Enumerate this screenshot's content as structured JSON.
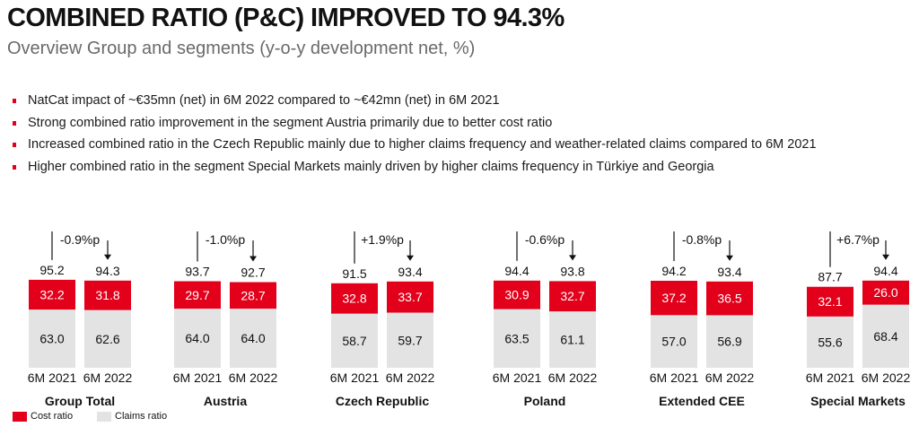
{
  "title": "COMBINED RATIO (P&C) IMPROVED TO 94.3%",
  "subtitle": "Overview Group and segments (y-o-y development net, %)",
  "bullets": [
    "NatCat impact of ~€35mn (net) in 6M 2022 compared to ~€42mn (net) in 6M 2021",
    "Strong combined ratio improvement in the segment Austria primarily due to better cost ratio",
    "Increased combined ratio in the Czech Republic mainly due to higher claims frequency and weather-related claims compared to 6M 2021",
    "Higher combined ratio in the segment Special Markets mainly driven by higher claims frequency in Türkiye and Georgia"
  ],
  "colors": {
    "cost": "#e2001a",
    "claims": "#e3e3e3",
    "accent": "#e2001a"
  },
  "legend": {
    "cost_label": "Cost ratio",
    "claims_label": "Claims ratio"
  },
  "chart_data": {
    "type": "bar",
    "stacked": true,
    "periods": [
      "6M 2021",
      "6M 2022"
    ],
    "series_names": [
      "Cost ratio",
      "Claims ratio"
    ],
    "segments": [
      {
        "name": "Group Total",
        "change": "-0.9%p",
        "totals": [
          "95.2",
          "94.3"
        ],
        "cost": [
          32.2,
          31.8
        ],
        "claims": [
          63.0,
          62.6
        ],
        "cost_labels": [
          "32.2",
          "31.8"
        ],
        "claims_labels": [
          "63.0",
          "62.6"
        ]
      },
      {
        "name": "Austria",
        "change": "-1.0%p",
        "totals": [
          "93.7",
          "92.7"
        ],
        "cost": [
          29.7,
          28.7
        ],
        "claims": [
          64.0,
          64.0
        ],
        "cost_labels": [
          "29.7",
          "28.7"
        ],
        "claims_labels": [
          "64.0",
          "64.0"
        ]
      },
      {
        "name": "Czech Republic",
        "change": "+1.9%p",
        "totals": [
          "91.5",
          "93.4"
        ],
        "cost": [
          32.8,
          33.7
        ],
        "claims": [
          58.7,
          59.7
        ],
        "cost_labels": [
          "32.8",
          "33.7"
        ],
        "claims_labels": [
          "58.7",
          "59.7"
        ]
      },
      {
        "name": "Poland",
        "change": "-0.6%p",
        "totals": [
          "94.4",
          "93.8"
        ],
        "cost": [
          30.9,
          32.7
        ],
        "claims": [
          63.5,
          61.1
        ],
        "cost_labels": [
          "30.9",
          "32.7"
        ],
        "claims_labels": [
          "63.5",
          "61.1"
        ]
      },
      {
        "name": "Extended CEE",
        "change": "-0.8%p",
        "totals": [
          "94.2",
          "93.4"
        ],
        "cost": [
          37.2,
          36.5
        ],
        "claims": [
          57.0,
          56.9
        ],
        "cost_labels": [
          "37.2",
          "36.5"
        ],
        "claims_labels": [
          "57.0",
          "56.9"
        ]
      },
      {
        "name": "Special Markets",
        "change": "+6.7%p",
        "totals": [
          "87.7",
          "94.4"
        ],
        "cost": [
          32.1,
          26.0
        ],
        "claims": [
          55.6,
          68.4
        ],
        "cost_labels": [
          "32.1",
          "26.0"
        ],
        "claims_labels": [
          "55.6",
          "68.4"
        ]
      }
    ]
  }
}
